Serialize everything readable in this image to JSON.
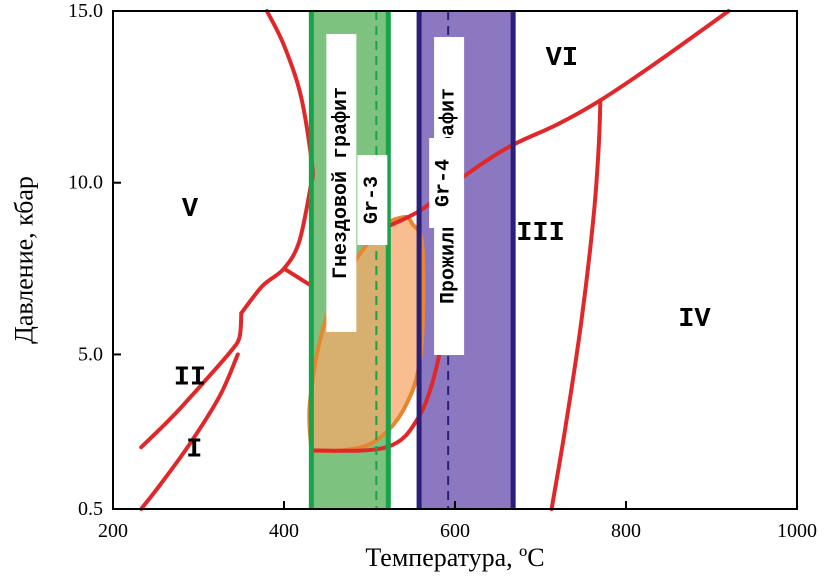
{
  "chart_data": {
    "type": "phase-diagram",
    "xlabel": "Температура, ºС",
    "ylabel": "Давление, кбар",
    "xlim": [
      200,
      1000
    ],
    "ylim": [
      0.5,
      15.0
    ],
    "x_ticks": [
      {
        "value": 200,
        "label": "200"
      },
      {
        "value": 400,
        "label": "400"
      },
      {
        "value": 600,
        "label": "600"
      },
      {
        "value": 800,
        "label": "800"
      },
      {
        "value": 1000,
        "label": "1000"
      }
    ],
    "y_ticks": [
      {
        "value": 0.5,
        "label": "0.5"
      },
      {
        "value": 5.0,
        "label": "5.0"
      },
      {
        "value": 10.0,
        "label": "10.0"
      },
      {
        "value": 15.0,
        "label": "15.0"
      }
    ],
    "colors": {
      "boundary": "#e0282b",
      "gr3_fill": "#7dc27e",
      "gr3_edge": "#17a34a",
      "gr4_fill": "#8b78c0",
      "gr4_edge": "#2a1f7a",
      "orange_fill": "#f6a86a",
      "orange_edge": "#e8852f"
    },
    "regions": [
      {
        "label": "I",
        "x": 295,
        "y": 2.2
      },
      {
        "label": "II",
        "x": 290,
        "y": 4.3
      },
      {
        "label": "III",
        "x": 700,
        "y": 8.5
      },
      {
        "label": "IV",
        "x": 880,
        "y": 6.0
      },
      {
        "label": "V",
        "x": 290,
        "y": 9.2
      },
      {
        "label": "VI",
        "x": 725,
        "y": 13.6
      }
    ],
    "bands": [
      {
        "id": "gr3",
        "name": "Gr-3",
        "title": "Гнездовой графит",
        "x_min": 432,
        "x_max": 522,
        "dashed_x": 508
      },
      {
        "id": "gr4",
        "name": "Gr-4",
        "title": "Прожилковый графит",
        "x_min": 558,
        "x_max": 668,
        "dashed_x": 592
      }
    ],
    "orange_field": [
      [
        432,
        2.2
      ],
      [
        430,
        3.5
      ],
      [
        442,
        5.4
      ],
      [
        465,
        7.0
      ],
      [
        510,
        8.6
      ],
      [
        540,
        9.0
      ],
      [
        550,
        8.8
      ],
      [
        562,
        8.1
      ],
      [
        560,
        5.0
      ],
      [
        540,
        3.4
      ],
      [
        505,
        2.45
      ],
      [
        465,
        2.2
      ],
      [
        432,
        2.2
      ]
    ],
    "boundaries": [
      {
        "name": "I-II lower",
        "points": [
          [
            233,
            0.5
          ],
          [
            255,
            1.2
          ],
          [
            290,
            2.4
          ],
          [
            325,
            3.8
          ],
          [
            346,
            5.0
          ]
        ]
      },
      {
        "name": "I-II upper",
        "points": [
          [
            233,
            2.3
          ],
          [
            270,
            3.2
          ],
          [
            310,
            4.3
          ],
          [
            338,
            5.1
          ],
          [
            348,
            5.5
          ],
          [
            350,
            6.2
          ]
        ]
      },
      {
        "name": "II-V",
        "points": [
          [
            350,
            6.2
          ],
          [
            375,
            7.0
          ],
          [
            400,
            7.5
          ],
          [
            418,
            8.3
          ],
          [
            432,
            10.0
          ]
        ]
      },
      {
        "name": "V small",
        "points": [
          [
            400,
            7.5
          ],
          [
            432,
            7.0
          ]
        ]
      },
      {
        "name": "V-upper",
        "points": [
          [
            432,
            10.0
          ],
          [
            433,
            10.5
          ],
          [
            420,
            12.5
          ],
          [
            400,
            14.0
          ],
          [
            380,
            15.0
          ]
        ]
      },
      {
        "name": "II-III",
        "points": [
          [
            432,
            2.2
          ],
          [
            520,
            2.3
          ],
          [
            558,
            3.2
          ],
          [
            580,
            4.8
          ],
          [
            588,
            6.5
          ]
        ]
      },
      {
        "name": "III-VI",
        "points": [
          [
            510,
            8.6
          ],
          [
            560,
            9.2
          ],
          [
            600,
            10.0
          ],
          [
            660,
            11.0
          ],
          [
            720,
            11.7
          ],
          [
            770,
            12.4
          ],
          [
            830,
            13.4
          ],
          [
            920,
            15.0
          ]
        ]
      },
      {
        "name": "III-IV",
        "points": [
          [
            713,
            0.5
          ],
          [
            730,
            3.0
          ],
          [
            748,
            6.0
          ],
          [
            762,
            9.0
          ],
          [
            768,
            11.0
          ],
          [
            770,
            12.4
          ]
        ]
      }
    ]
  }
}
